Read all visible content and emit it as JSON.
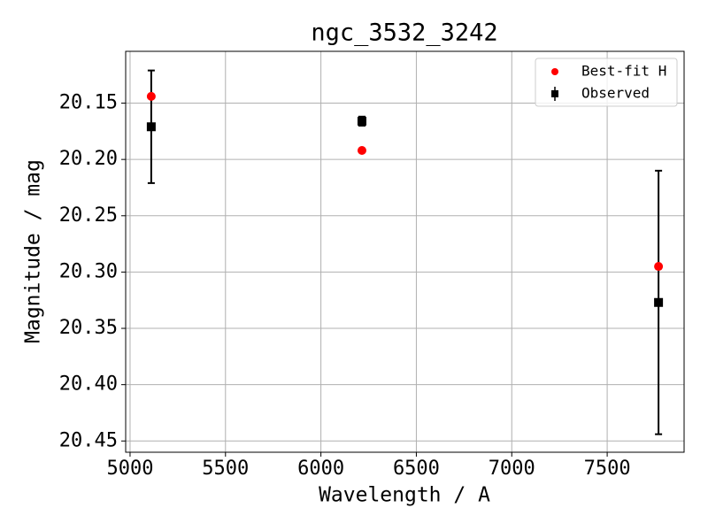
{
  "chart_data": {
    "type": "scatter",
    "title": "ngc_3532_3242",
    "x_label": "Wavelength / A",
    "y_label": "Magnitude / mag",
    "x": [
      5111,
      6215,
      7769
    ],
    "series": [
      {
        "name": "Best-fit H",
        "color": "#ff0000",
        "marker": "circle",
        "values": [
          20.144,
          20.192,
          20.295
        ]
      },
      {
        "name": "Observed",
        "color": "#000000",
        "marker": "square",
        "values": [
          20.171,
          20.166,
          20.327
        ],
        "errors": [
          0.05,
          0.004,
          0.117
        ]
      }
    ],
    "xlim": [
      4977,
      7903
    ],
    "xticks": [
      5000,
      5500,
      6000,
      6500,
      7000,
      7500
    ],
    "ylim": [
      20.104,
      20.46
    ],
    "y_inverted": true,
    "yticks": [
      20.15,
      {
        "value": 20.2,
        "label": "20.20"
      },
      20.25,
      {
        "value": 20.3,
        "label": "20.30"
      },
      20.35,
      {
        "value": 20.4,
        "label": "20.40"
      },
      20.45
    ],
    "grid": true,
    "legend": "upper right"
  }
}
